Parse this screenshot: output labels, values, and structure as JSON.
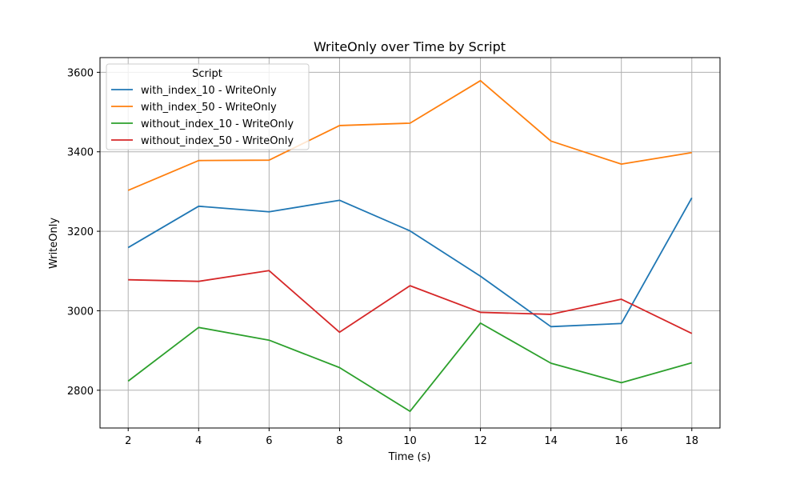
{
  "chart_data": {
    "type": "line",
    "title": "WriteOnly over Time by Script",
    "xlabel": "Time (s)",
    "ylabel": "WriteOnly",
    "x": [
      2,
      4,
      6,
      8,
      10,
      12,
      14,
      16,
      18
    ],
    "xlim": [
      1.2,
      18.8
    ],
    "ylim": [
      2705,
      3637
    ],
    "xticks": [
      2,
      4,
      6,
      8,
      10,
      12,
      14,
      16,
      18
    ],
    "yticks": [
      2800,
      3000,
      3200,
      3400,
      3600
    ],
    "grid": true,
    "legend": {
      "title": "Script",
      "position": "upper-left"
    },
    "series": [
      {
        "name": "with_index_10 - WriteOnly",
        "color": "#1f77b4",
        "values": [
          3159,
          3263,
          3249,
          3278,
          3201,
          3087,
          2960,
          2968,
          3284
        ]
      },
      {
        "name": "with_index_50 - WriteOnly",
        "color": "#ff7f0e",
        "values": [
          3303,
          3378,
          3379,
          3466,
          3472,
          3579,
          3427,
          3369,
          3398
        ]
      },
      {
        "name": "without_index_10 - WriteOnly",
        "color": "#2ca02c",
        "values": [
          2823,
          2958,
          2926,
          2857,
          2747,
          2969,
          2868,
          2819,
          2869
        ]
      },
      {
        "name": "without_index_50 - WriteOnly",
        "color": "#d62728",
        "values": [
          3078,
          3074,
          3101,
          2946,
          3063,
          2996,
          2991,
          3029,
          2943
        ]
      }
    ]
  }
}
